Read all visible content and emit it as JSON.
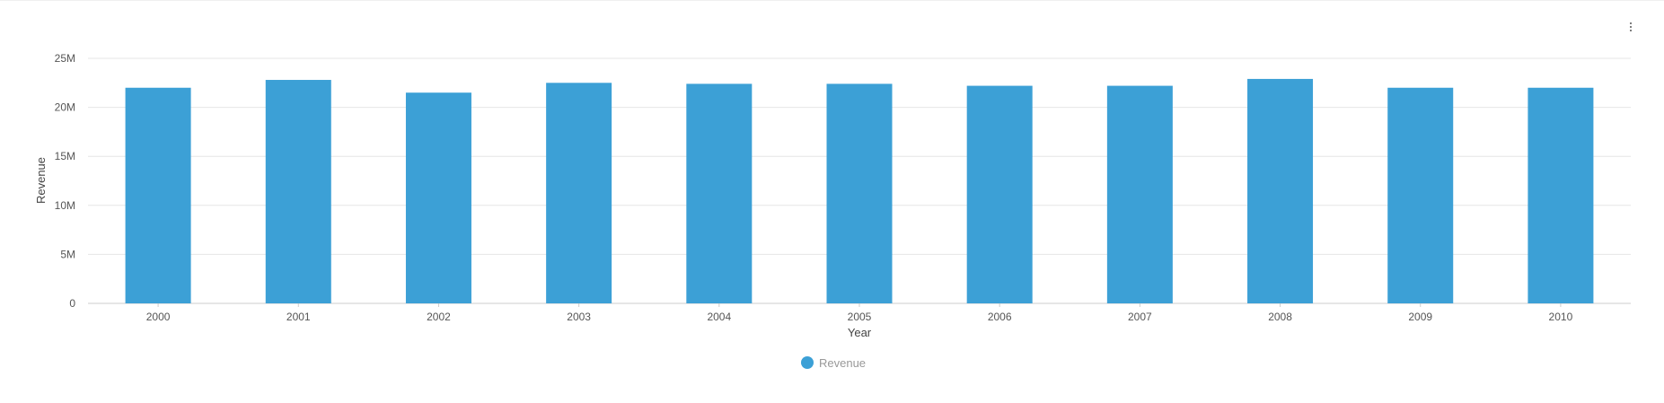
{
  "toolbar": {
    "menu_icon": "more-vert-icon"
  },
  "colors": {
    "bar": "#3ca0d6",
    "grid": "#e6e6e6",
    "axis": "#cccccc"
  },
  "chart_data": {
    "type": "bar",
    "categories": [
      "2000",
      "2001",
      "2002",
      "2003",
      "2004",
      "2005",
      "2006",
      "2007",
      "2008",
      "2009",
      "2010"
    ],
    "series": [
      {
        "name": "Revenue",
        "values": [
          22000000,
          22800000,
          21500000,
          22500000,
          22400000,
          22400000,
          22200000,
          22200000,
          22900000,
          22000000,
          22000000
        ]
      }
    ],
    "yticks": [
      0,
      5000000,
      10000000,
      15000000,
      20000000,
      25000000
    ],
    "ytick_labels": [
      "0",
      "5M",
      "10M",
      "15M",
      "20M",
      "25M"
    ],
    "xlabel": "Year",
    "ylabel": "Revenue",
    "ylim": [
      0,
      25000000
    ],
    "grid": true,
    "legend": {
      "position": "bottom-center",
      "entries": [
        "Revenue"
      ]
    }
  }
}
